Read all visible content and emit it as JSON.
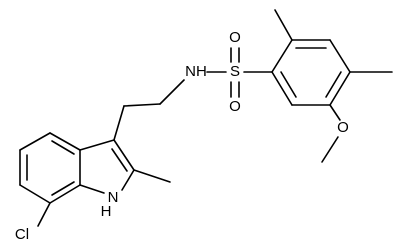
{
  "atoms": [
    {
      "label": "NH"
    },
    {
      "label": "S"
    },
    {
      "label": "O"
    },
    {
      "label": "O"
    },
    {
      "label": "O"
    },
    {
      "label": "Cl"
    },
    {
      "label": "N"
    },
    {
      "label": "H"
    }
  ]
}
